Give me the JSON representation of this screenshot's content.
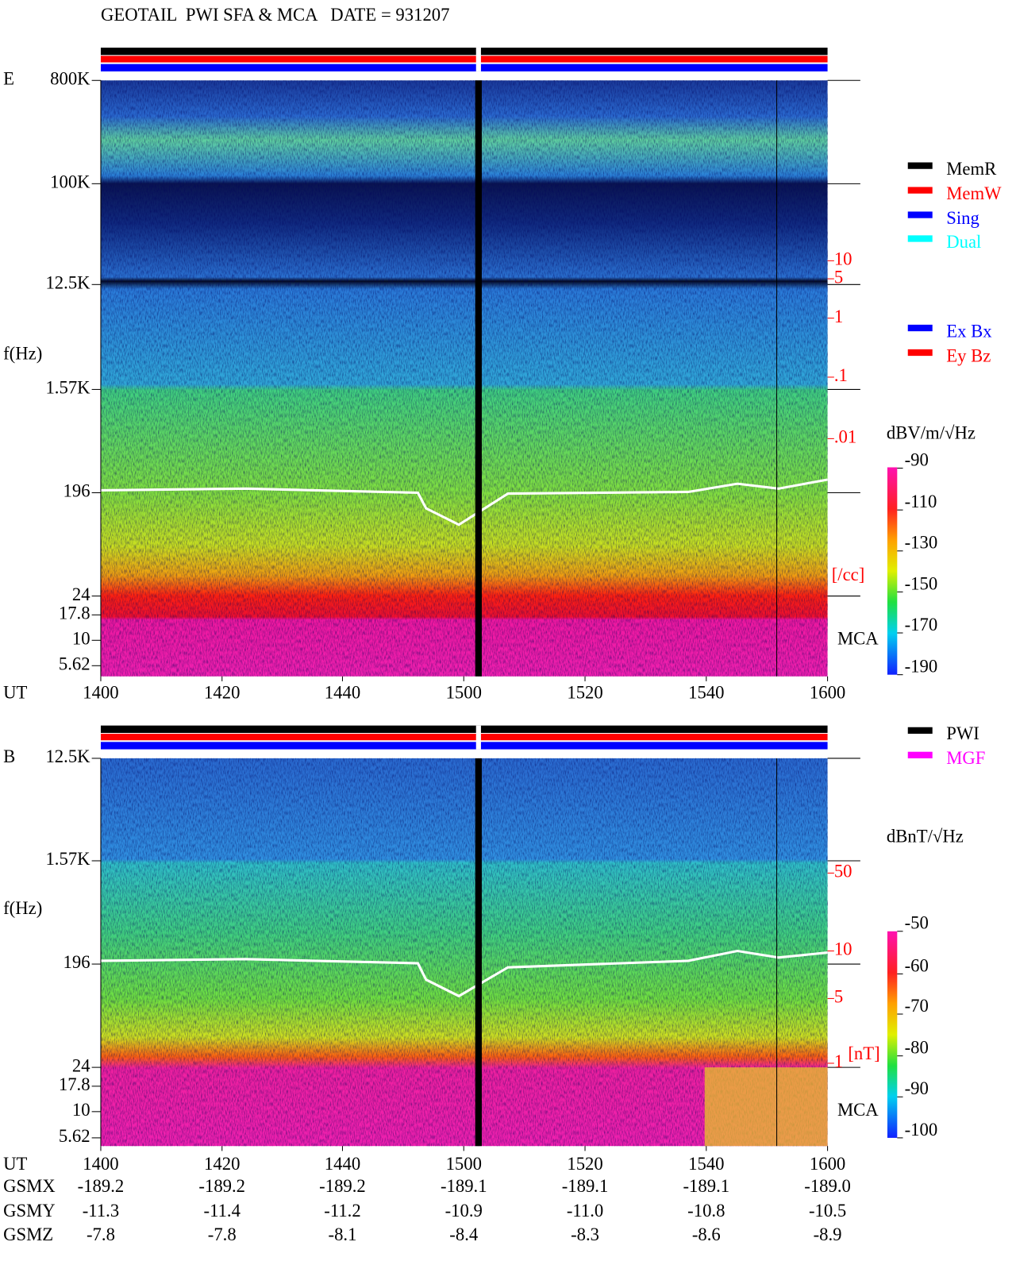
{
  "header": {
    "title": "GEOTAIL  PWI SFA & MCA   DATE = 931207"
  },
  "panels": [
    {
      "label": "E",
      "y_axis_title": "f(Hz)",
      "x_axis_title": "UT",
      "y_labels": [
        "800K",
        "100K",
        "12.5K",
        "1.57K",
        "196",
        "24",
        "17.8",
        "10",
        "5.62"
      ],
      "x_labels": [
        "1400",
        "1420",
        "1440",
        "1500",
        "1520",
        "1540",
        "1600"
      ],
      "right_labels": [
        "10",
        "5",
        "1",
        ".1",
        ".01"
      ],
      "right_unit": "[/cc]",
      "mca_label": "MCA",
      "legend": [
        {
          "name": "MemR",
          "color": "#000000"
        },
        {
          "name": "MemW",
          "color": "#ff0000"
        },
        {
          "name": "Sing",
          "color": "#0000ff"
        },
        {
          "name": "Dual",
          "color": "#00ffff"
        }
      ],
      "legend2": [
        {
          "name": "Ex Bx",
          "color": "#0000ff"
        },
        {
          "name": "Ey Bz",
          "color": "#ff0000"
        }
      ],
      "colorbar_title": "dBV/m/√Hz",
      "colorbar_ticks": [
        -90,
        -110,
        -130,
        -150,
        -170,
        -190
      ]
    },
    {
      "label": "B",
      "y_axis_title": "f(Hz)",
      "x_axis_title": "UT",
      "y_labels": [
        "12.5K",
        "1.57K",
        "196",
        "24",
        "17.8",
        "10",
        "5.62"
      ],
      "x_labels": [
        "1400",
        "1420",
        "1440",
        "1500",
        "1520",
        "1540",
        "1600"
      ],
      "right_labels": [
        "50",
        "10",
        "5",
        "1"
      ],
      "right_unit": "[nT]",
      "mca_label": "MCA",
      "legend": [
        {
          "name": "PWI",
          "color": "#000000"
        },
        {
          "name": "MGF",
          "color": "#ff00ff"
        }
      ],
      "colorbar_title": "dBnT/√Hz",
      "colorbar_ticks": [
        -50,
        -60,
        -70,
        -80,
        -90,
        -100
      ]
    }
  ],
  "orbit": {
    "rows": [
      {
        "name": "GSMX",
        "values": [
          "-189.2",
          "-189.2",
          "-189.2",
          "-189.1",
          "-189.1",
          "-189.1",
          "-189.0"
        ]
      },
      {
        "name": "GSMY",
        "values": [
          "-11.3",
          "-11.4",
          "-11.2",
          "-10.9",
          "-11.0",
          "-10.8",
          "-10.5"
        ]
      },
      {
        "name": "GSMZ",
        "values": [
          "-7.8",
          "-7.8",
          "-8.1",
          "-8.4",
          "-8.3",
          "-8.6",
          "-8.9"
        ]
      }
    ]
  }
}
